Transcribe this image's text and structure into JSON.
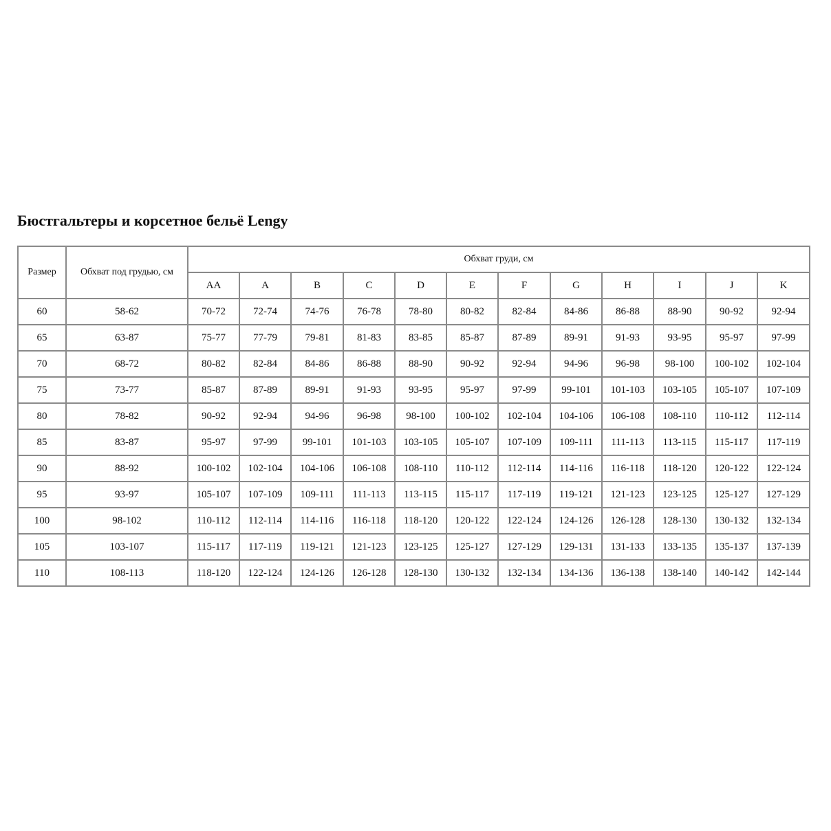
{
  "title": "Бюстгальтеры и корсетное бельё Lengy",
  "table": {
    "headers": {
      "size": "Размер",
      "underbust": "Обхват под грудью, см",
      "bust": "Обхват груди, см",
      "cups": [
        "AA",
        "A",
        "B",
        "C",
        "D",
        "E",
        "F",
        "G",
        "H",
        "I",
        "J",
        "K"
      ]
    },
    "rows": [
      [
        "60",
        "58-62",
        "70-72",
        "72-74",
        "74-76",
        "76-78",
        "78-80",
        "80-82",
        "82-84",
        "84-86",
        "86-88",
        "88-90",
        "90-92",
        "92-94"
      ],
      [
        "65",
        "63-87",
        "75-77",
        "77-79",
        "79-81",
        "81-83",
        "83-85",
        "85-87",
        "87-89",
        "89-91",
        "91-93",
        "93-95",
        "95-97",
        "97-99"
      ],
      [
        "70",
        "68-72",
        "80-82",
        "82-84",
        "84-86",
        "86-88",
        "88-90",
        "90-92",
        "92-94",
        "94-96",
        "96-98",
        "98-100",
        "100-102",
        "102-104"
      ],
      [
        "75",
        "73-77",
        "85-87",
        "87-89",
        "89-91",
        "91-93",
        "93-95",
        "95-97",
        "97-99",
        "99-101",
        "101-103",
        "103-105",
        "105-107",
        "107-109"
      ],
      [
        "80",
        "78-82",
        "90-92",
        "92-94",
        "94-96",
        "96-98",
        "98-100",
        "100-102",
        "102-104",
        "104-106",
        "106-108",
        "108-110",
        "110-112",
        "112-114"
      ],
      [
        "85",
        "83-87",
        "95-97",
        "97-99",
        "99-101",
        "101-103",
        "103-105",
        "105-107",
        "107-109",
        "109-111",
        "111-113",
        "113-115",
        "115-117",
        "117-119"
      ],
      [
        "90",
        "88-92",
        "100-102",
        "102-104",
        "104-106",
        "106-108",
        "108-110",
        "110-112",
        "112-114",
        "114-116",
        "116-118",
        "118-120",
        "120-122",
        "122-124"
      ],
      [
        "95",
        "93-97",
        "105-107",
        "107-109",
        "109-111",
        "111-113",
        "113-115",
        "115-117",
        "117-119",
        "119-121",
        "121-123",
        "123-125",
        "125-127",
        "127-129"
      ],
      [
        "100",
        "98-102",
        "110-112",
        "112-114",
        "114-116",
        "116-118",
        "118-120",
        "120-122",
        "122-124",
        "124-126",
        "126-128",
        "128-130",
        "130-132",
        "132-134"
      ],
      [
        "105",
        "103-107",
        "115-117",
        "117-119",
        "119-121",
        "121-123",
        "123-125",
        "125-127",
        "127-129",
        "129-131",
        "131-133",
        "133-135",
        "135-137",
        "137-139"
      ],
      [
        "110",
        "108-113",
        "118-120",
        "122-124",
        "124-126",
        "126-128",
        "128-130",
        "130-132",
        "132-134",
        "134-136",
        "136-138",
        "138-140",
        "140-142",
        "142-144"
      ]
    ]
  }
}
